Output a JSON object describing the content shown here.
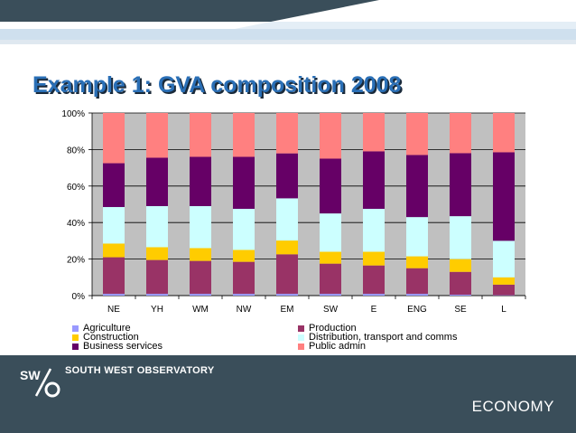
{
  "title": "Example 1: GVA composition 2008",
  "footer": {
    "org_name": "SOUTH WEST OBSERVATORY",
    "section": "ECONOMY"
  },
  "colors": {
    "header_dark": "#3a4e5a",
    "header_light": "#cfe0ee",
    "title": "#2a6fb6",
    "footer_bg": "#3a4e5a",
    "plot_bg": "#c0c0c0"
  },
  "chart_data": {
    "type": "bar",
    "stacked": true,
    "percent": true,
    "categories": [
      "NE",
      "YH",
      "WM",
      "NW",
      "EM",
      "SW",
      "E",
      "ENG",
      "SE",
      "L"
    ],
    "ylim": [
      0,
      100
    ],
    "yticks": [
      0,
      20,
      40,
      60,
      80,
      100
    ],
    "ytick_labels": [
      "0%",
      "20%",
      "40%",
      "60%",
      "80%",
      "100%"
    ],
    "grid": true,
    "legend_position": "bottom",
    "series": [
      {
        "name": "Agriculture",
        "color": "#9999ff",
        "values": [
          1,
          1,
          1,
          1,
          1,
          1,
          1,
          1,
          0.5,
          0.2
        ]
      },
      {
        "name": "Production",
        "color": "#993366",
        "values": [
          20,
          18.5,
          18,
          17.5,
          21.5,
          16.5,
          15.5,
          14,
          12.5,
          5.8
        ]
      },
      {
        "name": "Construction",
        "color": "#ffcc00",
        "values": [
          7.5,
          7,
          7,
          6.5,
          7.5,
          6.5,
          7.5,
          6.5,
          7,
          4
        ]
      },
      {
        "name": "Distribution, transport and comms",
        "color": "#ccffff",
        "values": [
          20,
          22.5,
          23,
          22.5,
          23,
          21,
          23.5,
          21.5,
          23.5,
          20
        ]
      },
      {
        "name": "Business services",
        "color": "#660066",
        "values": [
          24,
          26.5,
          27,
          28.5,
          24.5,
          30,
          31.5,
          34,
          34.5,
          48.5
        ]
      },
      {
        "name": "Public admin",
        "color": "#ff8080",
        "values": [
          27.5,
          24.5,
          24,
          24,
          22,
          25,
          21,
          23,
          22,
          21.5
        ]
      }
    ]
  }
}
